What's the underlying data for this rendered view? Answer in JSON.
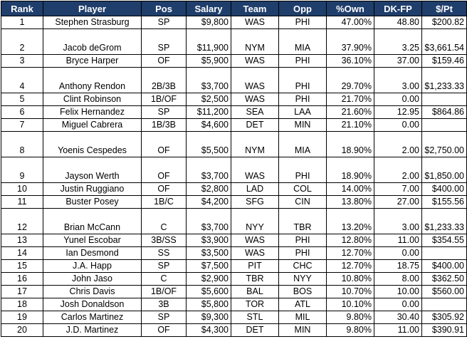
{
  "table": {
    "headers": [
      "Rank",
      "Player",
      "Pos",
      "Salary",
      "Team",
      "Opp",
      "%Own",
      "DK-FP",
      "$/Pt"
    ],
    "rows": [
      [
        "1",
        "Stephen Strasburg",
        "SP",
        "$9,800",
        "WAS",
        "PHI",
        "47.00%",
        "48.80",
        "$200.82"
      ],
      [
        "2",
        "Jacob deGrom",
        "SP",
        "$11,900",
        "NYM",
        "MIA",
        "37.90%",
        "3.25",
        "$3,661.54"
      ],
      [
        "3",
        "Bryce Harper",
        "OF",
        "$5,900",
        "WAS",
        "PHI",
        "36.10%",
        "37.00",
        "$159.46"
      ],
      [
        "4",
        "Anthony Rendon",
        "2B/3B",
        "$3,700",
        "WAS",
        "PHI",
        "29.70%",
        "3.00",
        "$1,233.33"
      ],
      [
        "5",
        "Clint Robinson",
        "1B/OF",
        "$2,500",
        "WAS",
        "PHI",
        "21.70%",
        "0.00",
        ""
      ],
      [
        "6",
        "Felix Hernandez",
        "SP",
        "$11,200",
        "SEA",
        "LAA",
        "21.60%",
        "12.95",
        "$864.86"
      ],
      [
        "7",
        "Miguel Cabrera",
        "1B/3B",
        "$4,600",
        "DET",
        "MIN",
        "21.10%",
        "0.00",
        ""
      ],
      [
        "8",
        "Yoenis Cespedes",
        "OF",
        "$5,500",
        "NYM",
        "MIA",
        "18.90%",
        "2.00",
        "$2,750.00"
      ],
      [
        "9",
        "Jayson Werth",
        "OF",
        "$3,700",
        "WAS",
        "PHI",
        "18.90%",
        "2.00",
        "$1,850.00"
      ],
      [
        "10",
        "Justin Ruggiano",
        "OF",
        "$2,800",
        "LAD",
        "COL",
        "14.00%",
        "7.00",
        "$400.00"
      ],
      [
        "11",
        "Buster Posey",
        "1B/C",
        "$4,200",
        "SFG",
        "CIN",
        "13.80%",
        "27.00",
        "$155.56"
      ],
      [
        "12",
        "Brian McCann",
        "C",
        "$3,700",
        "NYY",
        "TBR",
        "13.20%",
        "3.00",
        "$1,233.33"
      ],
      [
        "13",
        "Yunel Escobar",
        "3B/SS",
        "$3,900",
        "WAS",
        "PHI",
        "12.80%",
        "11.00",
        "$354.55"
      ],
      [
        "14",
        "Ian Desmond",
        "SS",
        "$3,500",
        "WAS",
        "PHI",
        "12.70%",
        "0.00",
        ""
      ],
      [
        "15",
        "J.A. Happ",
        "SP",
        "$7,500",
        "PIT",
        "CHC",
        "12.70%",
        "18.75",
        "$400.00"
      ],
      [
        "16",
        "John Jaso",
        "C",
        "$2,900",
        "TBR",
        "NYY",
        "10.80%",
        "8.00",
        "$362.50"
      ],
      [
        "17",
        "Chris Davis",
        "1B/OF",
        "$5,600",
        "BAL",
        "BOS",
        "10.70%",
        "10.00",
        "$560.00"
      ],
      [
        "18",
        "Josh Donaldson",
        "3B",
        "$5,800",
        "TOR",
        "ATL",
        "10.10%",
        "0.00",
        ""
      ],
      [
        "19",
        "Carlos Martinez",
        "SP",
        "$9,300",
        "STL",
        "MIL",
        "9.80%",
        "30.40",
        "$305.92"
      ],
      [
        "20",
        "J.D. Martinez",
        "OF",
        "$4,300",
        "DET",
        "MIN",
        "9.80%",
        "11.00",
        "$390.91"
      ]
    ]
  },
  "colors": {
    "header_bg": "#1f3e6b",
    "header_text": "#ffffff",
    "border": "#000000"
  }
}
